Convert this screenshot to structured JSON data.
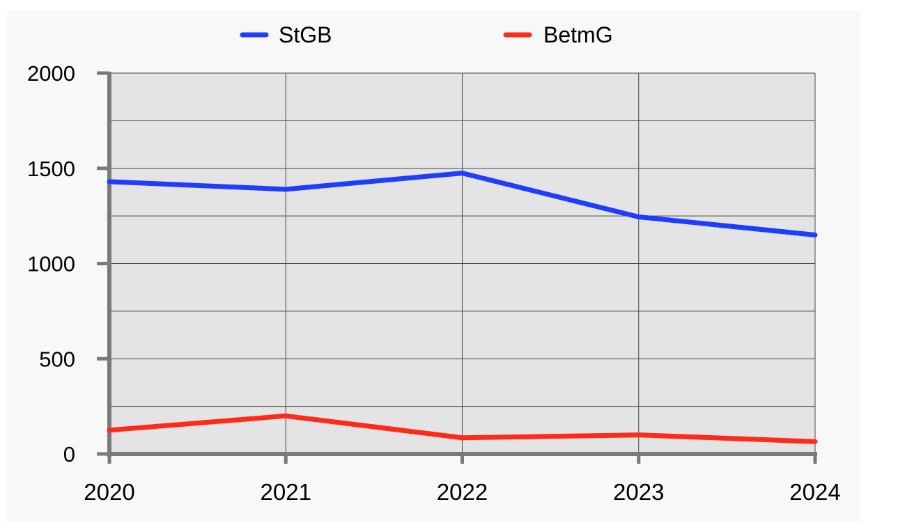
{
  "chart_data": {
    "type": "line",
    "x": [
      "2020",
      "2021",
      "2022",
      "2023",
      "2024"
    ],
    "series": [
      {
        "name": "StGB",
        "color": "#1f3dff",
        "values": [
          1430,
          1390,
          1475,
          1245,
          1150
        ]
      },
      {
        "name": "BetmG",
        "color": "#ff2a1a",
        "values": [
          125,
          200,
          85,
          100,
          65
        ]
      }
    ],
    "ylim": [
      0,
      2000
    ],
    "yticks": [
      "0",
      "500",
      "1000",
      "1500",
      "2000"
    ],
    "grid": true,
    "legend": "top"
  }
}
